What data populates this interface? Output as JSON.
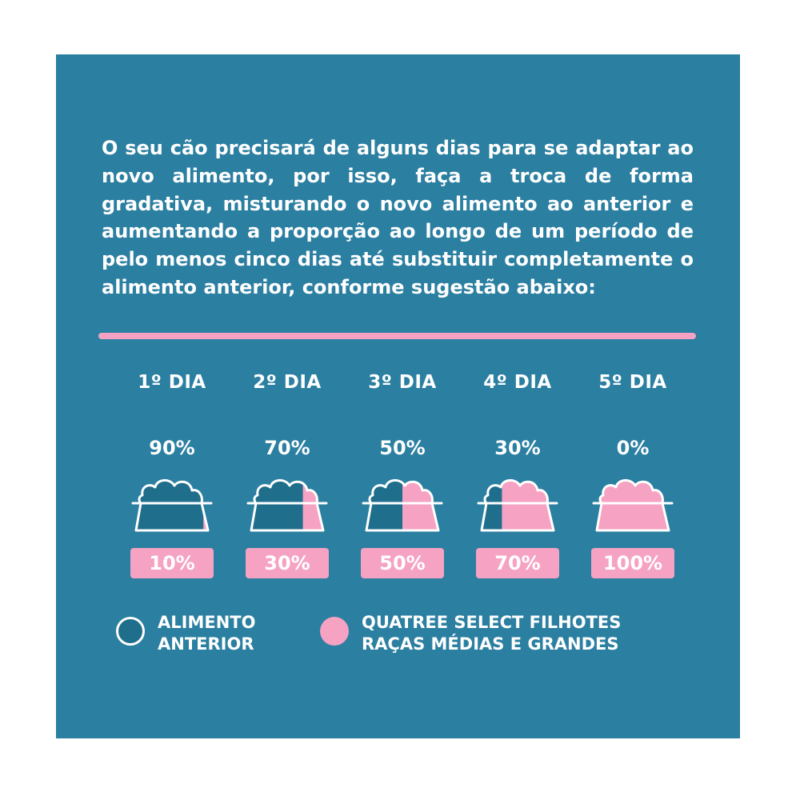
{
  "intro_text": "O seu cão precisará de alguns dias para se adaptar ao novo alimento, por isso, faça a troca de forma gradativa, misturando o novo alimento ao anterior e aumentando a proporção ao longo de um período de pelo menos cinco dias até substituir completamente o alimento anterior, conforme sugestão abaixo:",
  "colors": {
    "background": "#2b7fa1",
    "previous_food": "#1f6e8b",
    "new_food": "#f5a2c3",
    "text": "#ffffff"
  },
  "days": [
    {
      "label": "1º DIA",
      "previous_pct": "90%",
      "new_pct": "10%",
      "new_fraction": 0.1
    },
    {
      "label": "2º DIA",
      "previous_pct": "70%",
      "new_pct": "30%",
      "new_fraction": 0.3
    },
    {
      "label": "3º DIA",
      "previous_pct": "50%",
      "new_pct": "50%",
      "new_fraction": 0.5
    },
    {
      "label": "4º DIA",
      "previous_pct": "30%",
      "new_pct": "70%",
      "new_fraction": 0.7
    },
    {
      "label": "5º DIA",
      "previous_pct": "0%",
      "new_pct": "100%",
      "new_fraction": 1.0
    }
  ],
  "legend": {
    "previous": {
      "line1": "ALIMENTO",
      "line2": "ANTERIOR",
      "icon": "circle-outline-blue"
    },
    "new": {
      "line1": "QUATREE SELECT FILHOTES",
      "line2": "RAÇAS MÉDIAS E GRANDES",
      "icon": "circle-pink"
    }
  }
}
